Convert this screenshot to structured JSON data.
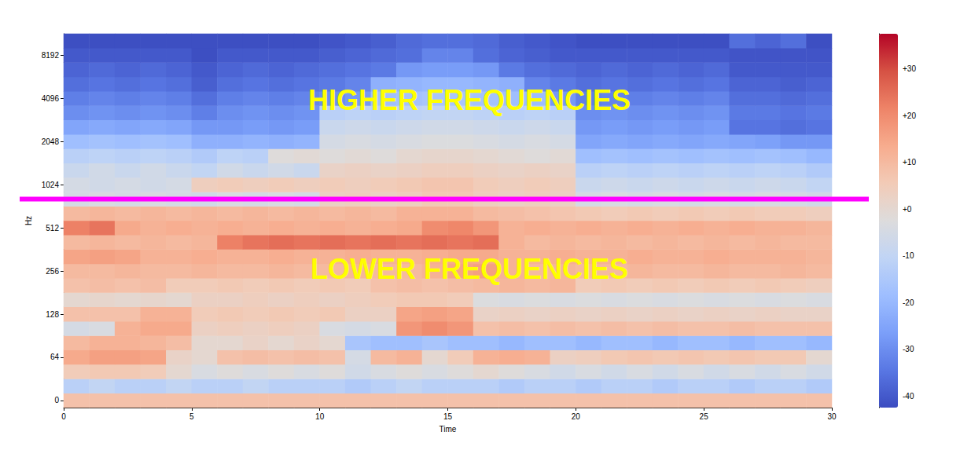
{
  "chart_data": {
    "type": "heatmap",
    "xlabel": "Time",
    "ylabel": "Hz",
    "time_bins": [
      0,
      1,
      2,
      3,
      4,
      5,
      6,
      7,
      8,
      9,
      10,
      11,
      12,
      13,
      14,
      15,
      16,
      17,
      18,
      19,
      20,
      21,
      22,
      23,
      24,
      25,
      26,
      27,
      28,
      29,
      30
    ],
    "xlim": [
      0,
      30
    ],
    "xticks": [
      0,
      5,
      10,
      15,
      20,
      25,
      30
    ],
    "frequencies": [
      0,
      21,
      43,
      64,
      81,
      102,
      128,
      161,
      203,
      256,
      323,
      406,
      512,
      645,
      813,
      1024,
      1290,
      1625,
      2048,
      2580,
      3251,
      4096,
      5161,
      6502,
      8192,
      10321
    ],
    "yticks": [
      0,
      64,
      128,
      256,
      512,
      1024,
      2048,
      4096,
      8192
    ],
    "cells": [
      [
        8,
        8,
        8,
        8,
        8,
        8,
        8,
        8,
        8,
        8,
        8,
        8,
        8,
        8,
        8,
        8,
        8,
        8,
        8,
        8,
        8,
        8,
        8,
        8,
        8,
        8,
        8,
        8,
        8,
        8
      ],
      [
        -12,
        -10,
        -12,
        -12,
        -10,
        -12,
        -12,
        -10,
        -12,
        -12,
        -12,
        -14,
        -12,
        -10,
        -12,
        -12,
        -12,
        -14,
        -12,
        -12,
        -14,
        -12,
        -12,
        -14,
        -12,
        -12,
        -14,
        -12,
        -12,
        -14
      ],
      [
        5,
        6,
        6,
        5,
        0,
        -4,
        -2,
        -4,
        -2,
        -4,
        -2,
        -6,
        -4,
        -2,
        -4,
        -2,
        0,
        -2,
        -4,
        -6,
        -4,
        -6,
        -4,
        -6,
        -4,
        -6,
        -4,
        -6,
        -4,
        -6
      ],
      [
        14,
        16,
        16,
        15,
        2,
        0,
        8,
        9,
        8,
        9,
        8,
        -5,
        10,
        12,
        0,
        5,
        12,
        13,
        12,
        3,
        4,
        6,
        7,
        6,
        7,
        6,
        7,
        6,
        6,
        0
      ],
      [
        10,
        12,
        12,
        11,
        9,
        0,
        0,
        2,
        0,
        2,
        0,
        -16,
        -18,
        -18,
        -16,
        -18,
        -18,
        -20,
        -18,
        -18,
        -20,
        -18,
        -18,
        -20,
        -18,
        -18,
        -20,
        -18,
        -18,
        -20
      ],
      [
        -5,
        -4,
        12,
        14,
        14,
        3,
        4,
        3,
        4,
        3,
        -4,
        -5,
        -4,
        18,
        20,
        18,
        8,
        9,
        8,
        9,
        8,
        9,
        8,
        9,
        8,
        8,
        9,
        8,
        8,
        8
      ],
      [
        8,
        8,
        8,
        12,
        12,
        5,
        6,
        5,
        6,
        5,
        6,
        3,
        3,
        15,
        16,
        15,
        2,
        3,
        2,
        3,
        2,
        3,
        2,
        3,
        2,
        3,
        2,
        3,
        2,
        2
      ],
      [
        0,
        1,
        0,
        1,
        0,
        3,
        3,
        4,
        3,
        4,
        3,
        4,
        5,
        6,
        6,
        5,
        -3,
        -4,
        -3,
        -4,
        -3,
        -4,
        -3,
        -4,
        -3,
        -4,
        -3,
        -4,
        -3,
        -4
      ],
      [
        8,
        9,
        8,
        9,
        5,
        5,
        6,
        5,
        6,
        5,
        6,
        5,
        8,
        9,
        8,
        9,
        10,
        11,
        10,
        11,
        5,
        6,
        5,
        6,
        5,
        6,
        5,
        6,
        5,
        4
      ],
      [
        10,
        10,
        11,
        10,
        10,
        11,
        10,
        10,
        11,
        10,
        10,
        11,
        10,
        10,
        12,
        15,
        16,
        12,
        10,
        11,
        10,
        10,
        11,
        10,
        10,
        11,
        10,
        10,
        11,
        10
      ],
      [
        15,
        16,
        15,
        12,
        12,
        13,
        12,
        12,
        13,
        12,
        12,
        13,
        12,
        12,
        13,
        14,
        14,
        12,
        12,
        13,
        12,
        12,
        13,
        12,
        12,
        13,
        12,
        12,
        12,
        11
      ],
      [
        10,
        11,
        10,
        11,
        10,
        11,
        22,
        24,
        25,
        24,
        25,
        24,
        25,
        24,
        25,
        24,
        25,
        12,
        10,
        11,
        10,
        11,
        10,
        11,
        10,
        11,
        10,
        11,
        10,
        10
      ],
      [
        22,
        24,
        14,
        12,
        13,
        12,
        13,
        12,
        13,
        12,
        13,
        12,
        13,
        14,
        20,
        21,
        18,
        12,
        13,
        12,
        13,
        12,
        13,
        12,
        13,
        12,
        13,
        12,
        12,
        11
      ],
      [
        10,
        11,
        10,
        11,
        10,
        11,
        10,
        11,
        10,
        11,
        10,
        11,
        10,
        12,
        12,
        12,
        10,
        9,
        8,
        7,
        6,
        5,
        6,
        5,
        6,
        5,
        6,
        5,
        5,
        4
      ],
      [
        -5,
        -4,
        -5,
        -4,
        -5,
        -6,
        -4,
        -5,
        -4,
        -5,
        3,
        4,
        3,
        4,
        6,
        6,
        4,
        3,
        4,
        3,
        -5,
        -4,
        -5,
        -4,
        -5,
        -4,
        -5,
        -4,
        -5,
        -6
      ],
      [
        -5,
        -6,
        -5,
        -6,
        -5,
        4,
        5,
        4,
        5,
        4,
        5,
        4,
        5,
        6,
        7,
        7,
        5,
        4,
        5,
        4,
        -8,
        -7,
        -8,
        -7,
        -8,
        -7,
        -8,
        -7,
        -8,
        -10
      ],
      [
        -8,
        -6,
        -8,
        -6,
        -8,
        -10,
        -6,
        -8,
        -6,
        -8,
        2,
        3,
        2,
        3,
        4,
        4,
        3,
        2,
        3,
        2,
        -12,
        -11,
        -12,
        -11,
        -12,
        -11,
        -12,
        -11,
        -12,
        -14
      ],
      [
        -12,
        -11,
        -12,
        -11,
        -12,
        -14,
        -11,
        -12,
        -2,
        -1,
        -2,
        -1,
        -2,
        0,
        1,
        1,
        0,
        -1,
        -2,
        -1,
        -18,
        -17,
        -18,
        -17,
        -18,
        -17,
        -18,
        -17,
        -18,
        -20
      ],
      [
        -18,
        -17,
        -18,
        -17,
        -18,
        -22,
        -22,
        -21,
        -22,
        -21,
        -5,
        -4,
        -5,
        -4,
        -3,
        -3,
        -4,
        -5,
        -4,
        -5,
        -25,
        -24,
        -25,
        -24,
        -25,
        -24,
        -25,
        -26,
        -28,
        -28
      ],
      [
        -25,
        -24,
        -25,
        -24,
        -25,
        -28,
        -28,
        -27,
        -28,
        -27,
        -8,
        -7,
        -8,
        -7,
        -6,
        -6,
        -7,
        -8,
        -7,
        -8,
        -28,
        -27,
        -28,
        -27,
        -28,
        -27,
        -35,
        -35,
        -36,
        -35
      ],
      [
        -30,
        -29,
        -30,
        -29,
        -30,
        -33,
        -30,
        -29,
        -30,
        -29,
        -12,
        -11,
        -12,
        -11,
        -10,
        -10,
        -11,
        -12,
        -11,
        -12,
        -30,
        -29,
        -30,
        -29,
        -30,
        -29,
        -34,
        -34,
        -35,
        -34
      ],
      [
        -33,
        -32,
        -33,
        -32,
        -33,
        -36,
        -33,
        -32,
        -33,
        -32,
        -30,
        -28,
        -18,
        -17,
        -16,
        -16,
        -17,
        -18,
        -19,
        -28,
        -33,
        -32,
        -33,
        -32,
        -33,
        -32,
        -36,
        -36,
        -37,
        -36
      ],
      [
        -36,
        -35,
        -36,
        -35,
        -36,
        -39,
        -36,
        -35,
        -36,
        -35,
        -34,
        -32,
        -22,
        -21,
        -20,
        -20,
        -21,
        -22,
        -32,
        -34,
        -36,
        -35,
        -36,
        -35,
        -36,
        -35,
        -38,
        -38,
        -39,
        -38
      ],
      [
        -38,
        -37,
        -38,
        -37,
        -38,
        -40,
        -38,
        -37,
        -38,
        -37,
        -36,
        -35,
        -34,
        -28,
        -27,
        -27,
        -28,
        -34,
        -36,
        -37,
        -38,
        -37,
        -38,
        -37,
        -38,
        -37,
        -40,
        -40,
        -40,
        -40
      ],
      [
        -40,
        -40,
        -40,
        -40,
        -40,
        -42,
        -40,
        -40,
        -40,
        -40,
        -39,
        -38,
        -37,
        -36,
        -32,
        -32,
        -36,
        -38,
        -39,
        -40,
        -40,
        -40,
        -40,
        -40,
        -40,
        -40,
        -41,
        -41,
        -41,
        -41
      ],
      [
        -42,
        -42,
        -42,
        -42,
        -42,
        -42,
        -42,
        -42,
        -42,
        -42,
        -41,
        -40,
        -39,
        -37,
        -36,
        -36,
        -37,
        -39,
        -40,
        -41,
        -42,
        -42,
        -42,
        -42,
        -42,
        -42,
        -36,
        -38,
        -36,
        -42
      ]
    ],
    "colorbar": {
      "range": [
        -42.5,
        37.5
      ],
      "ticks": [
        -40,
        -30,
        -20,
        -10,
        {
          "value": 0,
          "label": "+0"
        },
        {
          "value": 10,
          "label": "+10"
        },
        {
          "value": 20,
          "label": "+20"
        },
        {
          "value": 30,
          "label": "+30"
        }
      ]
    },
    "divider_frequency": 813,
    "annotations": [
      "HIGHER FREQUENCIES",
      "LOWER FREQUENCIES"
    ]
  }
}
